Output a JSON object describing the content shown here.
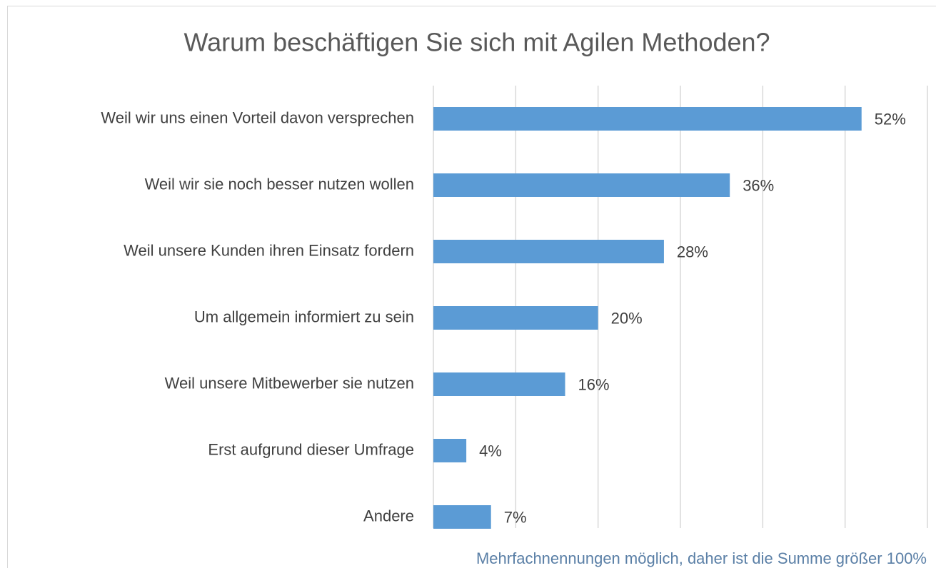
{
  "chart_data": {
    "type": "bar",
    "orientation": "horizontal",
    "title": "Warum beschäftigen Sie sich mit Agilen Methoden?",
    "categories": [
      "Weil wir uns einen Vorteil davon versprechen",
      "Weil wir sie noch besser nutzen wollen",
      "Weil unsere Kunden ihren Einsatz fordern",
      "Um allgemein informiert zu sein",
      "Weil unsere Mitbewerber sie nutzen",
      "Erst aufgrund dieser Umfrage",
      "Andere"
    ],
    "values": [
      52,
      36,
      28,
      20,
      16,
      4,
      7
    ],
    "value_labels": [
      "52%",
      "36%",
      "28%",
      "20%",
      "16%",
      "4%",
      "7%"
    ],
    "color": "#5b9bd5",
    "xlim": [
      0,
      60
    ],
    "xticks": [
      0,
      10,
      20,
      30,
      40,
      50,
      60
    ],
    "grid": true,
    "note": "Mehrfachnennungen möglich, daher ist die Summe größer 100%"
  }
}
